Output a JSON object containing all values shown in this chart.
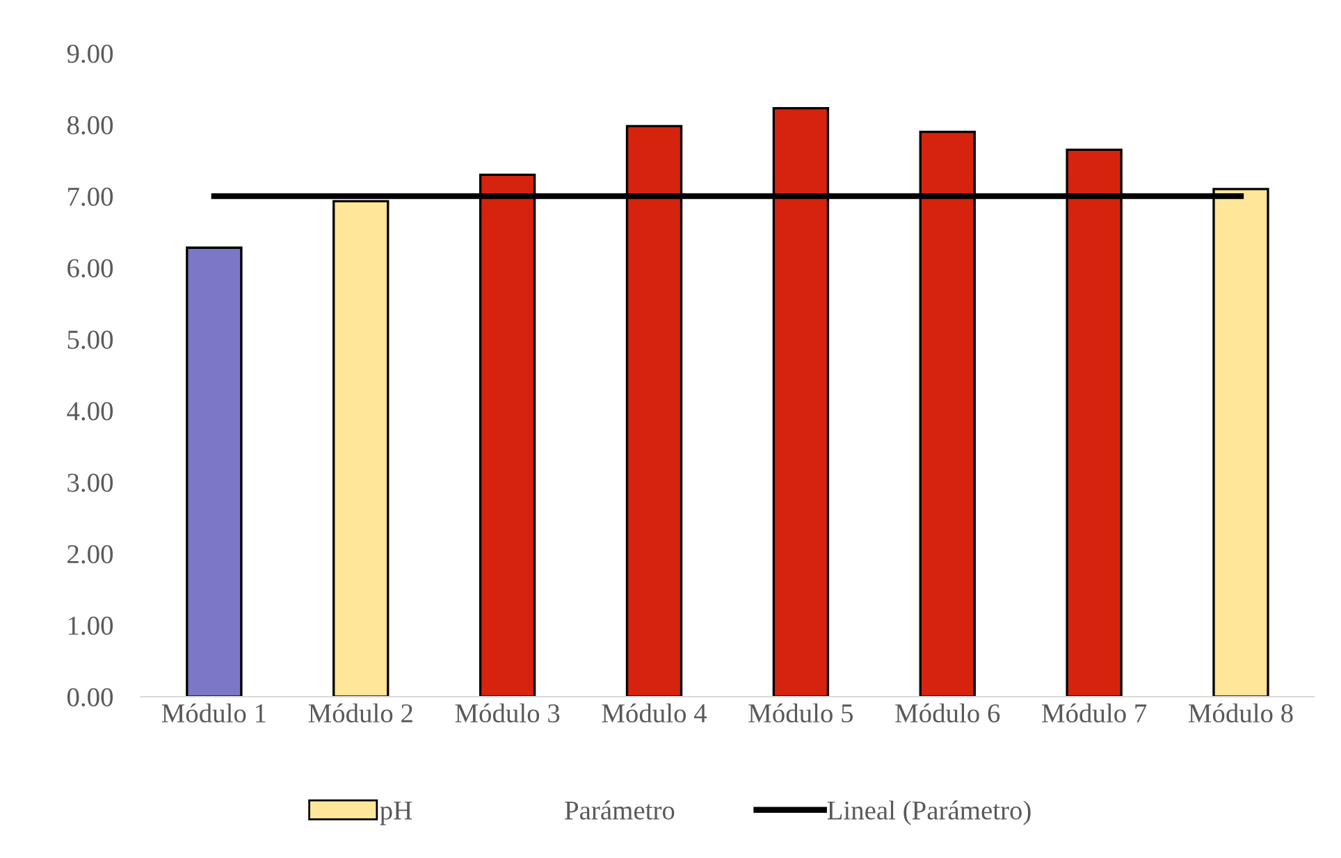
{
  "chart_data": {
    "type": "bar",
    "categories": [
      "Módulo 1",
      "Módulo 2",
      "Módulo 3",
      "Módulo 4",
      "Módulo 5",
      "Módulo 6",
      "Módulo 7",
      "Módulo 8"
    ],
    "series": [
      {
        "name": "pH",
        "color": "#ffe699",
        "colors": [
          "#7b78c8",
          "#ffe699",
          "#d6230d",
          "#d6230d",
          "#d6230d",
          "#d6230d",
          "#d6230d",
          "#ffe699"
        ],
        "values": [
          6.28,
          6.93,
          7.3,
          7.98,
          8.23,
          7.9,
          7.65,
          7.1
        ]
      },
      {
        "name": "Lineal (Parámetro)",
        "type": "line",
        "color": "#000000",
        "values": [
          7,
          7,
          7,
          7,
          7,
          7,
          7,
          7
        ]
      }
    ],
    "annotations": [
      "Parámetro"
    ],
    "ylim": [
      0,
      9
    ],
    "yticks": [
      {
        "value": 0,
        "label": "0.00"
      },
      {
        "value": 1,
        "label": "1.00"
      },
      {
        "value": 2,
        "label": "2.00"
      },
      {
        "value": 3,
        "label": "3.00"
      },
      {
        "value": 4,
        "label": "4.00"
      },
      {
        "value": 5,
        "label": "5.00"
      },
      {
        "value": 6,
        "label": "6.00"
      },
      {
        "value": 7,
        "label": "7.00"
      },
      {
        "value": 8,
        "label": "8.00"
      },
      {
        "value": 9,
        "label": "9.00"
      }
    ],
    "grid": false,
    "legend": "bottom"
  }
}
